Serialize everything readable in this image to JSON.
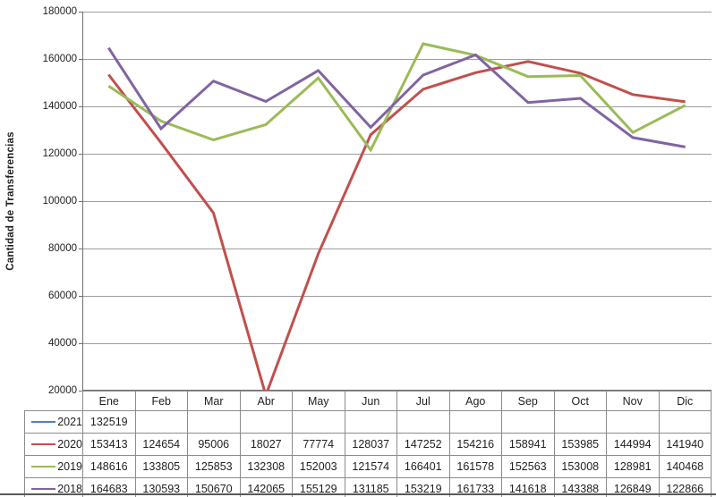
{
  "chart_data": {
    "type": "line",
    "title": "",
    "xlabel": "",
    "ylabel": "Cantidad de Transferencias",
    "ylim": [
      20000,
      180000
    ],
    "ytick_step": 20000,
    "yticks": [
      180000,
      160000,
      140000,
      120000,
      100000,
      80000,
      60000,
      40000,
      20000
    ],
    "categories": [
      "Ene",
      "Feb",
      "Mar",
      "Abr",
      "May",
      "Jun",
      "Jul",
      "Ago",
      "Sep",
      "Oct",
      "Nov",
      "Dic"
    ],
    "series": [
      {
        "name": "2021",
        "color": "#4F81BD",
        "values": [
          132519,
          null,
          null,
          null,
          null,
          null,
          null,
          null,
          null,
          null,
          null,
          null
        ]
      },
      {
        "name": "2020",
        "color": "#C0504D",
        "values": [
          153413,
          124654,
          95006,
          18027,
          77774,
          128037,
          147252,
          154216,
          158941,
          153985,
          144994,
          141940
        ]
      },
      {
        "name": "2019",
        "color": "#9BBB59",
        "values": [
          148616,
          133805,
          125853,
          132308,
          152003,
          121574,
          166401,
          161578,
          152563,
          153008,
          128981,
          140468
        ]
      },
      {
        "name": "2018",
        "color": "#8064A2",
        "values": [
          164683,
          130593,
          150670,
          142065,
          155129,
          131185,
          153219,
          161733,
          141618,
          143388,
          126849,
          122866
        ]
      }
    ],
    "grid": true,
    "legend_position": "data-table-left",
    "colors": {
      "gridline": "#9e9e9e",
      "axis": "#707070",
      "table_border": "#8c8c8c",
      "text": "#1f1f1f",
      "background": "#ffffff"
    }
  }
}
